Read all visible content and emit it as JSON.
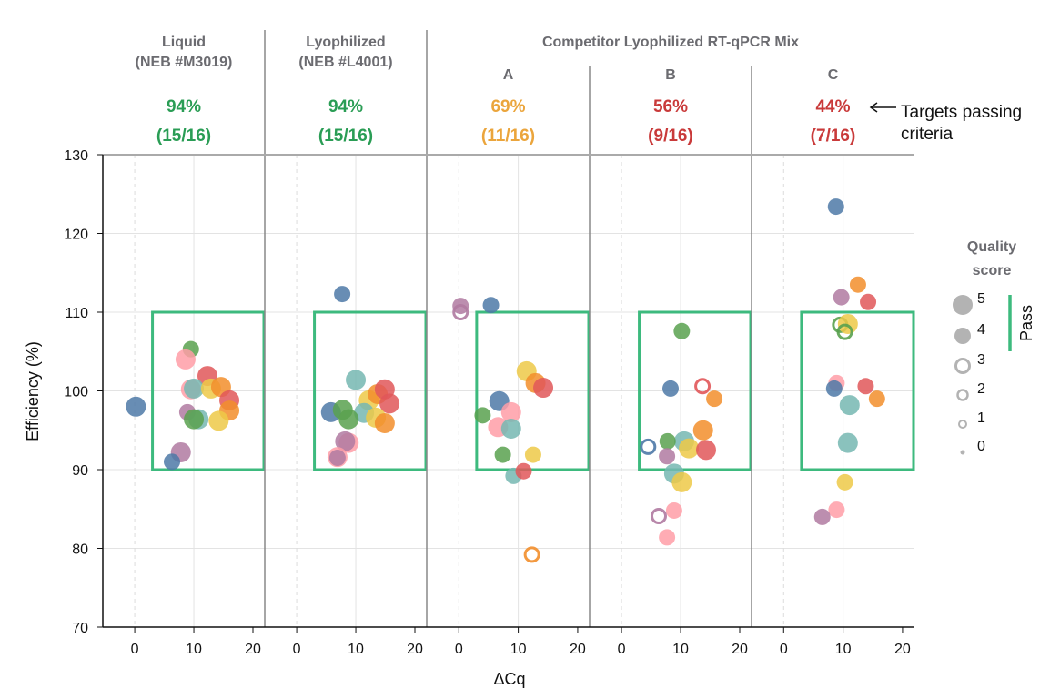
{
  "chart_data": {
    "type": "scatter",
    "xlabel": "ΔCq",
    "ylabel": "Efficiency (%)",
    "ylim": [
      70,
      130
    ],
    "yticks": [
      "70",
      "80",
      "90",
      "100",
      "110",
      "120",
      "130"
    ],
    "xlim": [
      -5.4,
      22
    ],
    "xticks": [
      "0",
      "10",
      "20"
    ],
    "grid": true,
    "pass_region": {
      "x": [
        3,
        22
      ],
      "y": [
        90,
        110
      ],
      "color": "#3dba7e"
    },
    "group_title": "Competitor Lyophilized RT-qPCR Mix",
    "annotation": {
      "line1": "Targets passing",
      "line2": "criteria",
      "icon": "arrow-left-icon"
    },
    "colors": {
      "blue": "#4e79a7",
      "orange": "#f28e2b",
      "red": "#e15759",
      "teal": "#76b7b2",
      "green": "#59a14f",
      "yellow": "#edc948",
      "purple": "#b07aa1",
      "pink": "#ff9da7"
    },
    "legend": {
      "title_line1": "Quality",
      "title_line2": "score",
      "pass_label": "Pass",
      "levels": [
        "5",
        "4",
        "3",
        "2",
        "1",
        "0"
      ]
    },
    "panels": [
      {
        "title1": "Liquid",
        "title2": "(NEB #M3019)",
        "pct": "94%",
        "frac": "(15/16)",
        "pct_color": "#2a9d55",
        "points": [
          {
            "c": "blue",
            "x": 0.2,
            "y": 98.0,
            "q": 5
          },
          {
            "c": "green",
            "x": 9.5,
            "y": 105.3,
            "q": 4
          },
          {
            "c": "pink",
            "x": 8.6,
            "y": 104.0,
            "q": 5
          },
          {
            "c": "red",
            "x": 12.3,
            "y": 101.9,
            "q": 5
          },
          {
            "c": "pink",
            "x": 9.5,
            "y": 100.2,
            "q": 5
          },
          {
            "c": "teal",
            "x": 10.0,
            "y": 100.3,
            "q": 5
          },
          {
            "c": "yellow",
            "x": 12.9,
            "y": 100.3,
            "q": 5
          },
          {
            "c": "orange",
            "x": 14.6,
            "y": 100.5,
            "q": 5
          },
          {
            "c": "red",
            "x": 16.0,
            "y": 98.8,
            "q": 5
          },
          {
            "c": "orange",
            "x": 16.0,
            "y": 97.5,
            "q": 5
          },
          {
            "c": "purple",
            "x": 8.9,
            "y": 97.3,
            "q": 4
          },
          {
            "c": "teal",
            "x": 10.8,
            "y": 96.4,
            "q": 5
          },
          {
            "c": "green",
            "x": 10.0,
            "y": 96.4,
            "q": 5
          },
          {
            "c": "yellow",
            "x": 14.2,
            "y": 96.2,
            "q": 5
          },
          {
            "c": "purple",
            "x": 7.8,
            "y": 92.2,
            "q": 5
          },
          {
            "c": "blue",
            "x": 6.3,
            "y": 91.0,
            "q": 4
          }
        ]
      },
      {
        "title1": "Lyophilized",
        "title2": "(NEB #L4001)",
        "pct": "94%",
        "frac": "(15/16)",
        "pct_color": "#2a9d55",
        "points": [
          {
            "c": "blue",
            "x": 7.7,
            "y": 112.3,
            "q": 4
          },
          {
            "c": "teal",
            "x": 10.0,
            "y": 101.4,
            "q": 5
          },
          {
            "c": "yellow",
            "x": 12.2,
            "y": 98.8,
            "q": 5
          },
          {
            "c": "orange",
            "x": 13.7,
            "y": 99.6,
            "q": 5
          },
          {
            "c": "red",
            "x": 14.9,
            "y": 100.2,
            "q": 5
          },
          {
            "c": "red",
            "x": 15.7,
            "y": 98.4,
            "q": 5
          },
          {
            "c": "blue",
            "x": 5.8,
            "y": 97.3,
            "q": 5
          },
          {
            "c": "green",
            "x": 7.8,
            "y": 97.6,
            "q": 5
          },
          {
            "c": "teal",
            "x": 11.4,
            "y": 97.2,
            "q": 5
          },
          {
            "c": "green",
            "x": 8.8,
            "y": 96.4,
            "q": 5
          },
          {
            "c": "yellow",
            "x": 13.4,
            "y": 96.6,
            "q": 5
          },
          {
            "c": "orange",
            "x": 14.9,
            "y": 95.9,
            "q": 5
          },
          {
            "c": "pink",
            "x": 8.8,
            "y": 93.4,
            "q": 5
          },
          {
            "c": "purple",
            "x": 8.2,
            "y": 93.6,
            "q": 5
          },
          {
            "c": "pink",
            "x": 6.9,
            "y": 91.6,
            "q": 5
          },
          {
            "c": "purple",
            "x": 6.9,
            "y": 91.5,
            "q": 4
          }
        ]
      },
      {
        "title1": "A",
        "title2": "",
        "pct": "69%",
        "frac": "(11/16)",
        "pct_color": "#eba53c",
        "points": [
          {
            "c": "purple",
            "x": 0.3,
            "y": 110.8,
            "q": 4
          },
          {
            "c": "purple",
            "x": 0.3,
            "y": 110.0,
            "q": 3
          },
          {
            "c": "blue",
            "x": 5.4,
            "y": 110.9,
            "q": 4
          },
          {
            "c": "yellow",
            "x": 11.4,
            "y": 102.5,
            "q": 5
          },
          {
            "c": "orange",
            "x": 12.9,
            "y": 101.0,
            "q": 5
          },
          {
            "c": "red",
            "x": 14.2,
            "y": 100.4,
            "q": 5
          },
          {
            "c": "blue",
            "x": 6.8,
            "y": 98.7,
            "q": 5
          },
          {
            "c": "pink",
            "x": 8.8,
            "y": 97.3,
            "q": 5
          },
          {
            "c": "green",
            "x": 4.0,
            "y": 96.9,
            "q": 4
          },
          {
            "c": "pink",
            "x": 6.6,
            "y": 95.4,
            "q": 5
          },
          {
            "c": "teal",
            "x": 8.8,
            "y": 95.2,
            "q": 5
          },
          {
            "c": "green",
            "x": 7.4,
            "y": 91.9,
            "q": 4
          },
          {
            "c": "yellow",
            "x": 12.5,
            "y": 91.9,
            "q": 4
          },
          {
            "c": "teal",
            "x": 9.2,
            "y": 89.2,
            "q": 4
          },
          {
            "c": "red",
            "x": 10.9,
            "y": 89.8,
            "q": 4
          },
          {
            "c": "orange",
            "x": 12.3,
            "y": 79.2,
            "q": 3
          }
        ]
      },
      {
        "title1": "B",
        "title2": "",
        "pct": "56%",
        "frac": "(9/16)",
        "pct_color": "#c93a3a",
        "points": [
          {
            "c": "green",
            "x": 10.2,
            "y": 107.6,
            "q": 4
          },
          {
            "c": "blue",
            "x": 8.3,
            "y": 100.3,
            "q": 4
          },
          {
            "c": "red",
            "x": 13.7,
            "y": 100.6,
            "q": 3
          },
          {
            "c": "orange",
            "x": 15.7,
            "y": 99.0,
            "q": 4
          },
          {
            "c": "orange",
            "x": 13.8,
            "y": 95.0,
            "q": 5
          },
          {
            "c": "teal",
            "x": 10.6,
            "y": 93.6,
            "q": 5
          },
          {
            "c": "green",
            "x": 7.8,
            "y": 93.6,
            "q": 4
          },
          {
            "c": "yellow",
            "x": 11.4,
            "y": 92.7,
            "q": 5
          },
          {
            "c": "red",
            "x": 14.3,
            "y": 92.5,
            "q": 5
          },
          {
            "c": "blue",
            "x": 4.5,
            "y": 92.9,
            "q": 3
          },
          {
            "c": "purple",
            "x": 7.7,
            "y": 91.7,
            "q": 4
          },
          {
            "c": "teal",
            "x": 8.9,
            "y": 89.5,
            "q": 5
          },
          {
            "c": "yellow",
            "x": 10.2,
            "y": 88.4,
            "q": 5
          },
          {
            "c": "pink",
            "x": 8.9,
            "y": 84.8,
            "q": 4
          },
          {
            "c": "purple",
            "x": 6.3,
            "y": 84.1,
            "q": 3
          },
          {
            "c": "pink",
            "x": 7.7,
            "y": 81.4,
            "q": 4
          }
        ]
      },
      {
        "title1": "C",
        "title2": "",
        "pct": "44%",
        "frac": "(7/16)",
        "pct_color": "#c93a3a",
        "points": [
          {
            "c": "blue",
            "x": 8.8,
            "y": 123.4,
            "q": 4
          },
          {
            "c": "orange",
            "x": 12.5,
            "y": 113.5,
            "q": 4
          },
          {
            "c": "purple",
            "x": 9.7,
            "y": 111.9,
            "q": 4
          },
          {
            "c": "red",
            "x": 14.2,
            "y": 111.3,
            "q": 4
          },
          {
            "c": "green",
            "x": 9.5,
            "y": 108.4,
            "q": 3
          },
          {
            "c": "yellow",
            "x": 10.8,
            "y": 108.5,
            "q": 5
          },
          {
            "c": "green",
            "x": 10.3,
            "y": 107.5,
            "q": 3
          },
          {
            "c": "pink",
            "x": 8.9,
            "y": 101.0,
            "q": 4
          },
          {
            "c": "blue",
            "x": 8.5,
            "y": 100.3,
            "q": 4
          },
          {
            "c": "red",
            "x": 13.8,
            "y": 100.6,
            "q": 4
          },
          {
            "c": "orange",
            "x": 15.7,
            "y": 99.0,
            "q": 4
          },
          {
            "c": "teal",
            "x": 11.1,
            "y": 98.2,
            "q": 5
          },
          {
            "c": "teal",
            "x": 10.8,
            "y": 93.4,
            "q": 5
          },
          {
            "c": "yellow",
            "x": 10.3,
            "y": 88.4,
            "q": 4
          },
          {
            "c": "pink",
            "x": 8.9,
            "y": 84.9,
            "q": 4
          },
          {
            "c": "purple",
            "x": 6.5,
            "y": 84.0,
            "q": 4
          }
        ]
      }
    ]
  }
}
